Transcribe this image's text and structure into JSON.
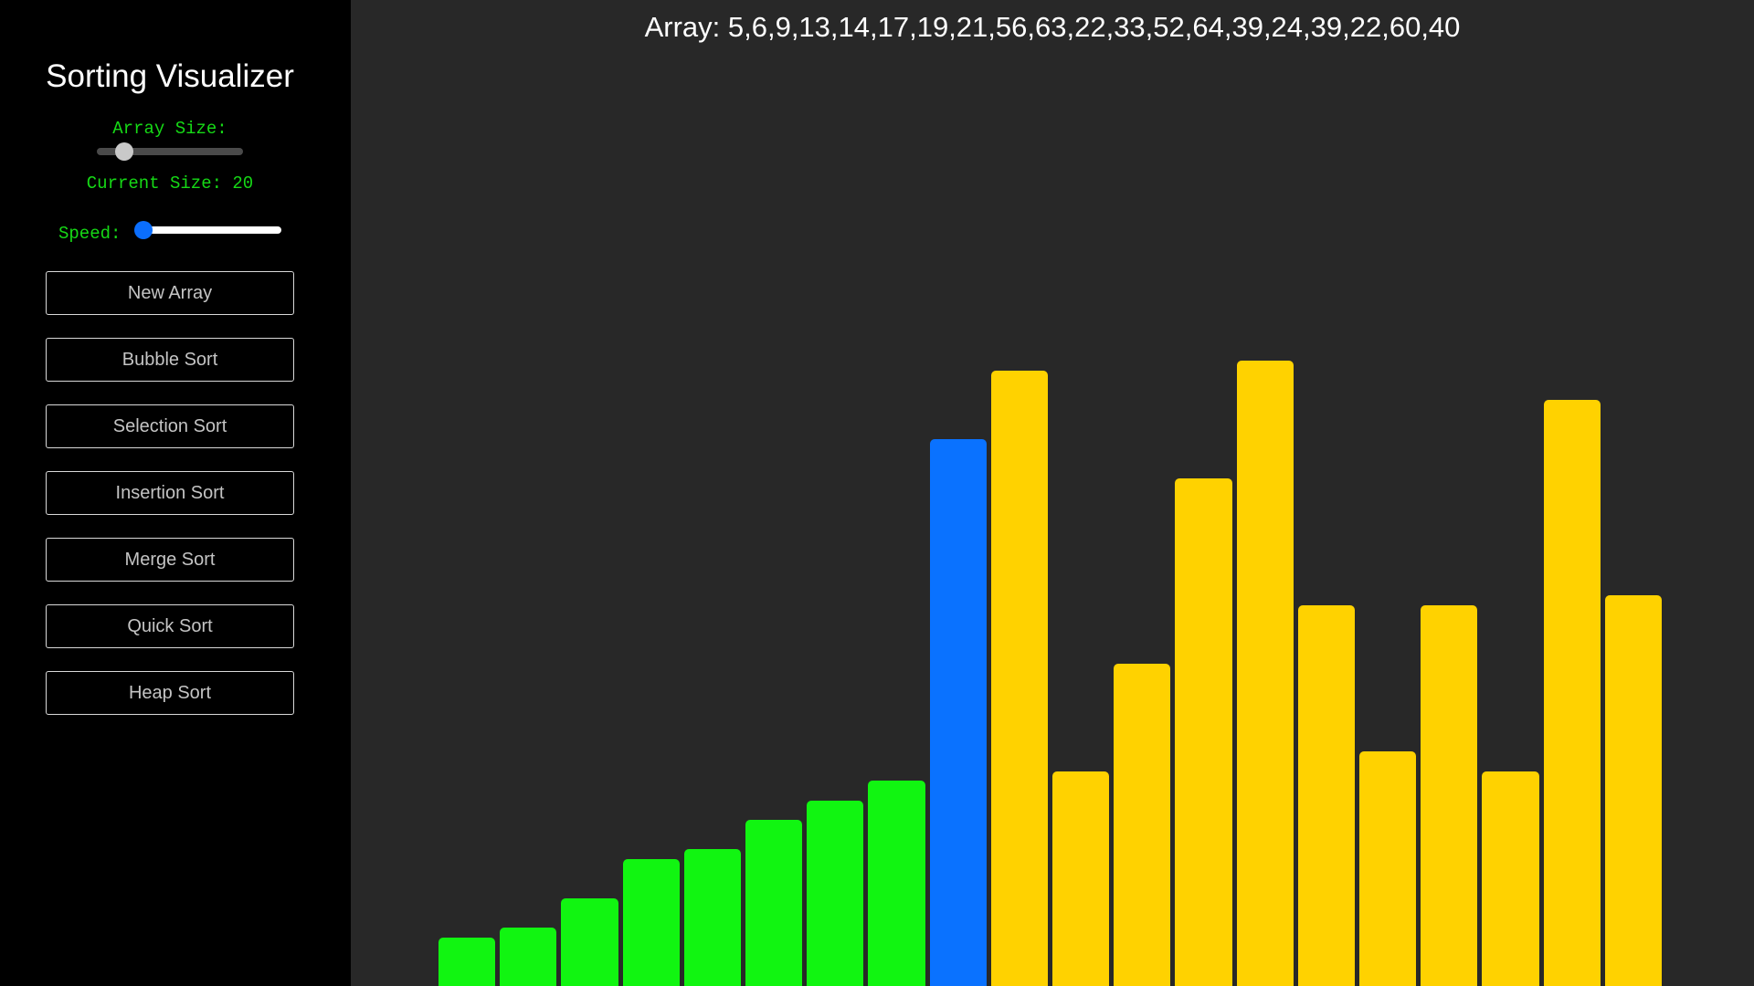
{
  "sidebar": {
    "title": "Sorting Visualizer",
    "array_size_label": "Array Size:",
    "array_size_value": 20,
    "array_size_range": [
      10,
      100
    ],
    "current_size_text": "Current Size: 20",
    "speed_label": "Speed:",
    "speed_value": 0,
    "buttons": [
      {
        "label": "New Array"
      },
      {
        "label": "Bubble Sort"
      },
      {
        "label": "Selection Sort"
      },
      {
        "label": "Insertion Sort"
      },
      {
        "label": "Merge Sort"
      },
      {
        "label": "Quick Sort"
      },
      {
        "label": "Heap Sort"
      }
    ]
  },
  "main": {
    "array_text": "Array: 5,6,9,13,14,17,19,21,56,63,22,33,52,64,39,24,39,22,60,40"
  },
  "colors": {
    "sorted": "#11f511",
    "active": "#0a72ff",
    "unsorted": "#ffd200"
  },
  "chart_data": {
    "type": "bar",
    "values": [
      5,
      6,
      9,
      13,
      14,
      17,
      19,
      21,
      56,
      63,
      22,
      33,
      52,
      64,
      39,
      24,
      39,
      22,
      60,
      40
    ],
    "states": [
      "sorted",
      "sorted",
      "sorted",
      "sorted",
      "sorted",
      "sorted",
      "sorted",
      "sorted",
      "active",
      "unsorted",
      "unsorted",
      "unsorted",
      "unsorted",
      "unsorted",
      "unsorted",
      "unsorted",
      "unsorted",
      "unsorted",
      "unsorted",
      "unsorted"
    ]
  }
}
